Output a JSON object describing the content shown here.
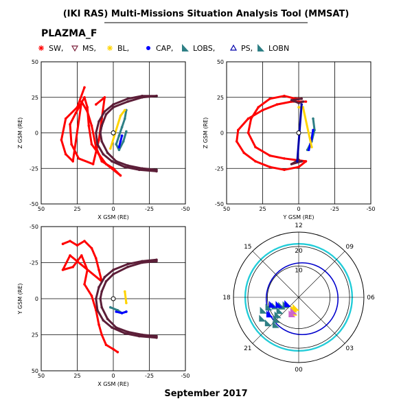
{
  "title": "(IKI RAS) Multi-Missions Situation Analysis Tool (MMSAT)",
  "instrument": "PLAZMA_F",
  "date": "September 2017",
  "legend": [
    {
      "label": "SW,",
      "color": "#ff0000",
      "symbol": "asterisk"
    },
    {
      "label": "MS,",
      "color": "#7a1f3a",
      "symbol": "triangle-down"
    },
    {
      "label": "BL,",
      "color": "#ffd400",
      "symbol": "asterisk"
    },
    {
      "label": "CAP,",
      "color": "#0000ff",
      "symbol": "circle"
    },
    {
      "label": "LOBS,",
      "color": "#2e7f85",
      "symbol": "wedge"
    },
    {
      "label": "PS,",
      "color": "#0000aa",
      "symbol": "triangle-up"
    },
    {
      "label": "LOBN",
      "color": "#2e7f85",
      "symbol": "wedge"
    }
  ],
  "chart_data": [
    {
      "type": "scatter",
      "id": "xz",
      "xlabel": "X GSM (RE)",
      "ylabel": "Z GSM (RE)",
      "xlim": [
        50,
        -50
      ],
      "ylim": [
        -50,
        50
      ],
      "x_ticks": [
        "50",
        "25",
        "0",
        "-25",
        "-50"
      ],
      "y_ticks": [
        "50",
        "25",
        "0",
        "-25",
        "-50"
      ],
      "grid": true,
      "series": [
        {
          "color": "#ff0000",
          "points": [
            [
              20,
              32
            ],
            [
              25,
              18
            ],
            [
              33,
              10
            ],
            [
              36,
              -5
            ],
            [
              33,
              -15
            ],
            [
              28,
              -20
            ],
            [
              22,
              22
            ],
            [
              18,
              15
            ],
            [
              15,
              5
            ],
            [
              12,
              -10
            ],
            [
              8,
              -20
            ],
            [
              0,
              -25
            ],
            [
              -5,
              -30
            ],
            [
              5,
              -22
            ],
            [
              10,
              -15
            ],
            [
              15,
              -8
            ],
            [
              17,
              5
            ],
            [
              18,
              18
            ],
            [
              20,
              25
            ],
            [
              26,
              14
            ],
            [
              30,
              6
            ],
            [
              29,
              -8
            ],
            [
              24,
              -18
            ],
            [
              14,
              -22
            ],
            [
              10,
              -5
            ],
            [
              8,
              10
            ],
            [
              6,
              25
            ],
            [
              12,
              20
            ]
          ]
        },
        {
          "color": "#5c1e38",
          "points": [
            [
              -30,
              26
            ],
            [
              -20,
              25
            ],
            [
              -10,
              22
            ],
            [
              0,
              18
            ],
            [
              5,
              13
            ],
            [
              8,
              5
            ],
            [
              9,
              0
            ],
            [
              8,
              -6
            ],
            [
              4,
              -14
            ],
            [
              -2,
              -20
            ],
            [
              -10,
              -23
            ],
            [
              -20,
              -25
            ],
            [
              -30,
              -26
            ]
          ]
        },
        {
          "color": "#5c1e38",
          "points": [
            [
              -30,
              26
            ],
            [
              -20,
              26
            ],
            [
              -10,
              24
            ],
            [
              0,
              20
            ],
            [
              6,
              15
            ],
            [
              10,
              8
            ],
            [
              12,
              0
            ],
            [
              11,
              -8
            ],
            [
              7,
              -15
            ],
            [
              1,
              -20
            ],
            [
              -8,
              -24
            ],
            [
              -18,
              -26
            ],
            [
              -30,
              -27
            ]
          ]
        },
        {
          "color": "#2e7f85",
          "points": [
            [
              -9,
              16
            ],
            [
              -8,
              10
            ],
            [
              -6,
              4
            ],
            [
              -4,
              -2
            ],
            [
              -2,
              -8
            ],
            [
              -4,
              -12
            ],
            [
              -7,
              -6
            ],
            [
              -9,
              1
            ]
          ]
        },
        {
          "color": "#0000ff",
          "points": [
            [
              -6,
              -2
            ],
            [
              -5,
              -6
            ],
            [
              -4,
              -10
            ]
          ]
        },
        {
          "color": "#ffd400",
          "points": [
            [
              -8,
              16
            ],
            [
              -5,
              12
            ],
            [
              2,
              -11
            ]
          ]
        }
      ]
    },
    {
      "type": "scatter",
      "id": "yz",
      "xlabel": "Y GSM (RE)",
      "ylabel": "Z GSM (RE)",
      "xlim": [
        50,
        -50
      ],
      "ylim": [
        -50,
        50
      ],
      "x_ticks": [
        "50",
        "25",
        "0",
        "-25",
        "-50"
      ],
      "y_ticks": [
        "50",
        "25",
        "0",
        "-25",
        "-50"
      ],
      "grid": true,
      "series": [
        {
          "color": "#ff0000",
          "points": [
            [
              -5,
              22
            ],
            [
              5,
              22
            ],
            [
              15,
              20
            ],
            [
              25,
              16
            ],
            [
              35,
              10
            ],
            [
              42,
              2
            ],
            [
              43,
              -6
            ],
            [
              38,
              -14
            ],
            [
              30,
              -20
            ],
            [
              20,
              -24
            ],
            [
              10,
              -26
            ],
            [
              0,
              -24
            ],
            [
              -5,
              -20
            ],
            [
              10,
              -18
            ],
            [
              20,
              -16
            ],
            [
              30,
              -10
            ],
            [
              35,
              0
            ],
            [
              33,
              10
            ],
            [
              28,
              18
            ],
            [
              20,
              24
            ],
            [
              10,
              26
            ],
            [
              2,
              24
            ],
            [
              -2,
              24
            ]
          ]
        },
        {
          "color": "#5c1e38",
          "points": [
            [
              -2,
              24
            ],
            [
              5,
              23
            ],
            [
              0,
              21
            ],
            [
              -3,
              22
            ]
          ]
        },
        {
          "color": "#5c1e38",
          "points": [
            [
              -2,
              -20
            ],
            [
              5,
              -22
            ],
            [
              0,
              -19
            ]
          ]
        },
        {
          "color": "#2e7f85",
          "points": [
            [
              -10,
              10
            ],
            [
              -11,
              2
            ],
            [
              -9,
              -6
            ],
            [
              -6,
              -12
            ]
          ]
        },
        {
          "color": "#0000ff",
          "points": [
            [
              -10,
              2
            ],
            [
              -9,
              -4
            ],
            [
              -8,
              -8
            ],
            [
              -7,
              -12
            ]
          ]
        },
        {
          "color": "#ffd400",
          "points": [
            [
              0,
              18
            ],
            [
              -3,
              18
            ],
            [
              -9,
              -10
            ]
          ]
        },
        {
          "color": "#0000aa",
          "points": [
            [
              -2,
              20
            ],
            [
              1,
              -20
            ]
          ]
        }
      ]
    },
    {
      "type": "scatter",
      "id": "xy",
      "xlabel": "X GSM (RE)",
      "ylabel": "Y GSM (RE)",
      "xlim": [
        50,
        -50
      ],
      "ylim": [
        50,
        -50
      ],
      "x_ticks": [
        "50",
        "25",
        "0",
        "-25",
        "-50"
      ],
      "y_ticks": [
        "-50",
        "-25",
        "0",
        "25",
        "50"
      ],
      "grid": true,
      "series": [
        {
          "color": "#ff0000",
          "points": [
            [
              35,
              -38
            ],
            [
              30,
              -40
            ],
            [
              25,
              -37
            ],
            [
              20,
              -40
            ],
            [
              15,
              -35
            ],
            [
              12,
              -28
            ],
            [
              10,
              -20
            ],
            [
              8,
              -12
            ],
            [
              30,
              -30
            ],
            [
              35,
              -20
            ],
            [
              28,
              -22
            ],
            [
              22,
              -30
            ],
            [
              18,
              -20
            ],
            [
              20,
              -10
            ],
            [
              15,
              -2
            ],
            [
              12,
              8
            ],
            [
              10,
              18
            ],
            [
              8,
              25
            ],
            [
              5,
              32
            ],
            [
              0,
              35
            ],
            [
              -3,
              37
            ]
          ]
        },
        {
          "color": "#5c1e38",
          "points": [
            [
              -30,
              -26
            ],
            [
              -20,
              -25
            ],
            [
              -10,
              -22
            ],
            [
              0,
              -17
            ],
            [
              5,
              -12
            ],
            [
              8,
              -5
            ],
            [
              9,
              0
            ],
            [
              8,
              6
            ],
            [
              4,
              14
            ],
            [
              -2,
              20
            ],
            [
              -10,
              23
            ],
            [
              -20,
              25
            ],
            [
              -30,
              26
            ]
          ]
        },
        {
          "color": "#5c1e38",
          "points": [
            [
              -30,
              -27
            ],
            [
              -20,
              -26
            ],
            [
              -10,
              -24
            ],
            [
              0,
              -20
            ],
            [
              6,
              -15
            ],
            [
              10,
              -8
            ],
            [
              12,
              0
            ],
            [
              11,
              8
            ],
            [
              7,
              15
            ],
            [
              1,
              20
            ],
            [
              -8,
              24
            ],
            [
              -18,
              26
            ],
            [
              -30,
              27
            ]
          ]
        },
        {
          "color": "#2e7f85",
          "points": [
            [
              2,
              6
            ],
            [
              -3,
              8
            ],
            [
              -6,
              10
            ],
            [
              -9,
              9
            ]
          ]
        },
        {
          "color": "#0000ff",
          "points": [
            [
              -2,
              9
            ],
            [
              -6,
              10
            ],
            [
              -9,
              9
            ]
          ]
        },
        {
          "color": "#ffd400",
          "points": [
            [
              -9,
              3
            ],
            [
              -8,
              -5
            ]
          ]
        }
      ]
    },
    {
      "type": "polar",
      "id": "polar",
      "labels": [
        "12",
        "09",
        "06",
        "03",
        "00",
        "21",
        "18",
        "15"
      ],
      "ring_labels": [
        "20",
        "10"
      ],
      "series": [
        {
          "color": "#2e7f85",
          "points": [
            [
              14,
              60
            ],
            [
              18,
              65
            ],
            [
              22,
              55
            ],
            [
              26,
              50
            ],
            [
              30,
              45
            ],
            [
              34,
              40
            ],
            [
              38,
              50
            ],
            [
              40,
              60
            ],
            [
              36,
              70
            ],
            [
              30,
              72
            ],
            [
              24,
              70
            ],
            [
              18,
              62
            ]
          ]
        },
        {
          "color": "#0000ff",
          "points": [
            [
              12,
              60
            ],
            [
              20,
              70
            ],
            [
              26,
              75
            ],
            [
              32,
              60
            ]
          ]
        },
        {
          "color": "#ffd400",
          "points": [
            [
              10,
              15
            ],
            [
              12,
              22
            ],
            [
              15,
              18
            ]
          ]
        },
        {
          "color": "#cc66cc",
          "points": [
            [
              14,
              20
            ],
            [
              17,
              22
            ]
          ]
        }
      ]
    }
  ]
}
